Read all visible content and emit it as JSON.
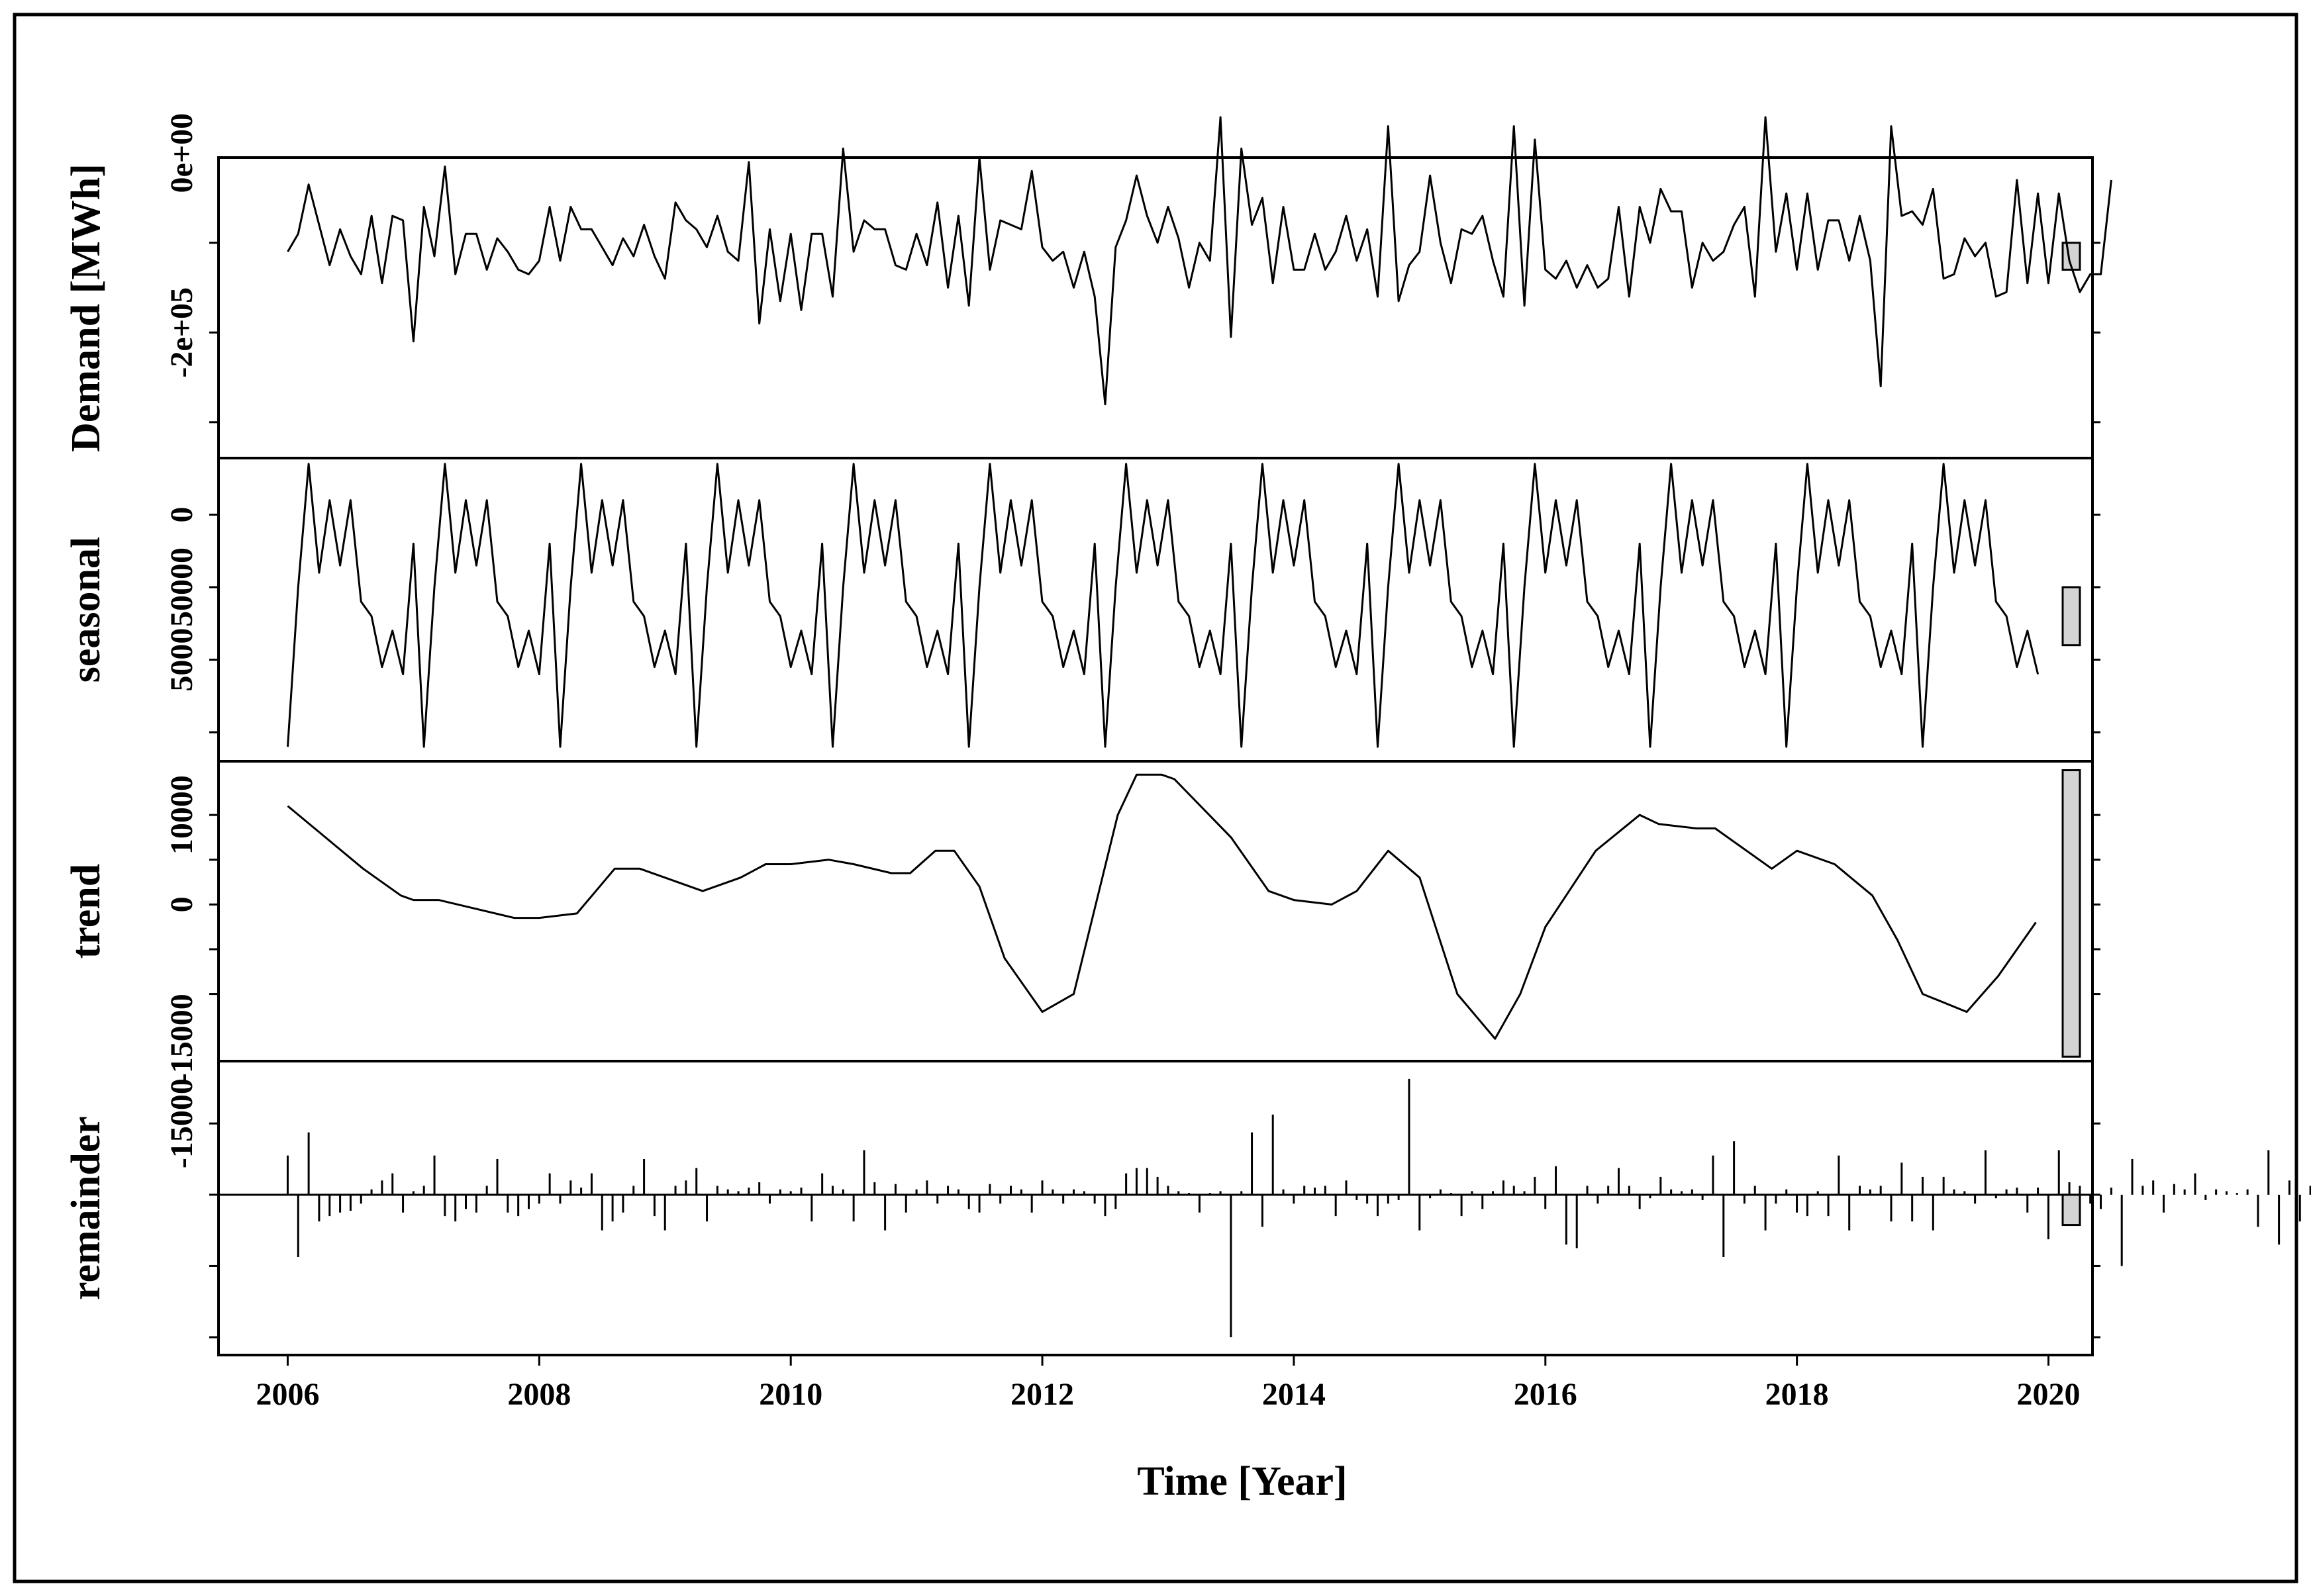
{
  "chart_data": {
    "type": "line",
    "title": "",
    "xlabel": "Time [Year]",
    "xlim": [
      2005.45,
      2020.35
    ],
    "x_ticks": [
      2006,
      2008,
      2010,
      2012,
      2014,
      2016,
      2018,
      2020
    ],
    "x_tick_labels": [
      "2006",
      "2008",
      "2010",
      "2012",
      "2014",
      "2016",
      "2018",
      "2020"
    ],
    "grid": false,
    "panels": [
      {
        "name": "data",
        "ylabel": "Demand [MWh]",
        "ylim": [
          -240000,
          95000
        ],
        "y_tick_values": [
          -200000,
          -100000,
          0,
          100000
        ],
        "y_tick_labels": [
          "-2e+05",
          "0e+00"
        ],
        "y_tick_label_values": [
          -100000,
          100000
        ],
        "scale_bar": [
          -30000,
          0
        ],
        "x_start": 2006.0,
        "x_step": 0.08333,
        "values": [
          -10000,
          10000,
          65000,
          20000,
          -25000,
          15000,
          -15000,
          -35000,
          30000,
          -45000,
          30000,
          25000,
          -110000,
          40000,
          -15000,
          85000,
          -35000,
          10000,
          10000,
          -30000,
          5000,
          -10000,
          -30000,
          -35000,
          -20000,
          40000,
          -20000,
          40000,
          15000,
          15000,
          -5000,
          -25000,
          5000,
          -15000,
          20000,
          -15000,
          -40000,
          45000,
          25000,
          15000,
          -5000,
          30000,
          -10000,
          -20000,
          90000,
          -90000,
          15000,
          -65000,
          10000,
          -75000,
          10000,
          10000,
          -60000,
          105000,
          -10000,
          25000,
          15000,
          15000,
          -25000,
          -30000,
          10000,
          -25000,
          45000,
          -50000,
          30000,
          -70000,
          95000,
          -30000,
          25000,
          20000,
          15000,
          80000,
          -5000,
          -20000,
          -10000,
          -50000,
          -10000,
          -60000,
          -180000,
          -5000,
          25000,
          75000,
          30000,
          0,
          40000,
          5000,
          -50000,
          0,
          -20000,
          140000,
          -105000,
          105000,
          20000,
          50000,
          -45000,
          40000,
          -30000,
          -30000,
          10000,
          -30000,
          -10000,
          30000,
          -20000,
          15000,
          -60000,
          130000,
          -65000,
          -25000,
          -10000,
          75000,
          0,
          -45000,
          15000,
          10000,
          30000,
          -20000,
          -60000,
          130000,
          -70000,
          115000,
          -30000,
          -40000,
          -20000,
          -50000,
          -25000,
          -50000,
          -40000,
          40000,
          -60000,
          40000,
          0,
          60000,
          35000,
          35000,
          -50000,
          0,
          -20000,
          -10000,
          20000,
          40000,
          -60000,
          140000,
          -10000,
          55000,
          -30000,
          55000,
          -30000,
          25000,
          25000,
          -20000,
          30000,
          -20000,
          -160000,
          130000,
          30000,
          35000,
          20000,
          60000,
          -40000,
          -35000,
          5000,
          -15000,
          0,
          -60000,
          -55000,
          70000,
          -45000,
          55000,
          -45000,
          55000,
          -20000,
          -55000,
          -35000,
          -35000,
          70000
        ]
      },
      {
        "name": "seasonal",
        "ylabel": "seasonal",
        "ylim": [
          -120000,
          89000
        ],
        "y_tick_values": [
          -100000,
          -50000,
          0,
          50000
        ],
        "y_tick_labels": [
          "0",
          "50000",
          "5000"
        ],
        "y_tick_label_values": [
          50000,
          0,
          -50000
        ],
        "scale_bar": [
          -40000,
          0
        ],
        "x_start": 2006.0,
        "x_step": 0.08333,
        "repeat_pattern": true,
        "values": [
          -110000,
          0,
          85000,
          10000,
          60000,
          15000,
          60000,
          -10000,
          -20000,
          -55000,
          -30000,
          -60000,
          30000
        ]
      },
      {
        "name": "trend",
        "ylabel": "trend",
        "ylim": [
          -17500,
          16000
        ],
        "y_tick_values": [
          -10000,
          -5000,
          0,
          5000,
          10000
        ],
        "y_tick_labels": [
          "-15000",
          "0",
          "10000"
        ],
        "y_tick_label_values": [
          -15000,
          0,
          10000
        ],
        "scale_bar": [
          -17000,
          15000
        ],
        "x": [
          2006.0,
          2006.3,
          2006.6,
          2006.9,
          2007.0,
          2007.2,
          2007.5,
          2007.8,
          2008.0,
          2008.3,
          2008.6,
          2008.8,
          2009.0,
          2009.3,
          2009.6,
          2009.8,
          2010.0,
          2010.3,
          2010.5,
          2010.8,
          2010.95,
          2011.15,
          2011.3,
          2011.5,
          2011.7,
          2012.0,
          2012.25,
          2012.6,
          2012.75,
          2012.95,
          2013.05,
          2013.5,
          2013.8,
          2014.0,
          2014.3,
          2014.5,
          2014.75,
          2015.0,
          2015.3,
          2015.6,
          2015.8,
          2016.0,
          2016.4,
          2016.75,
          2016.9,
          2017.2,
          2017.35,
          2017.8,
          2018.0,
          2018.3,
          2018.6,
          2018.8,
          2019.0,
          2019.35,
          2019.6,
          2019.9
        ],
        "values": [
          11000,
          7500,
          4000,
          1000,
          500,
          500,
          -500,
          -1500,
          -1500,
          -1000,
          4000,
          4000,
          3000,
          1500,
          3000,
          4500,
          4500,
          5000,
          4500,
          3500,
          3500,
          6000,
          6000,
          2000,
          -6000,
          -12000,
          -10000,
          10000,
          14500,
          14500,
          14000,
          7500,
          1500,
          500,
          0,
          1500,
          6000,
          3000,
          -10000,
          -15000,
          -10000,
          -2500,
          6000,
          10000,
          9000,
          8500,
          8500,
          4000,
          6000,
          4500,
          1000,
          -4000,
          -10000,
          -12000,
          -8000,
          -2000
        ]
      },
      {
        "name": "remainder",
        "ylabel": "remainder",
        "ylim": [
          -90000,
          75000
        ],
        "y_tick_values": [
          -80000,
          -40000,
          0,
          40000
        ],
        "y_tick_labels": [
          "-15000"
        ],
        "y_tick_label_values": [
          40000
        ],
        "scale_bar": [
          -17000,
          0
        ],
        "x_start": 2006.0,
        "x_step": 0.08333,
        "values": [
          22000,
          -35000,
          35000,
          -15000,
          -12000,
          -10000,
          -9000,
          -5000,
          3000,
          8000,
          12000,
          -10000,
          2000,
          5000,
          22000,
          -12000,
          -15000,
          -8000,
          -10000,
          5000,
          20000,
          -10000,
          -12000,
          -8000,
          -5000,
          12000,
          -5000,
          8000,
          4000,
          12000,
          -20000,
          -15000,
          -10000,
          5000,
          20000,
          -12000,
          -20000,
          5000,
          8000,
          15000,
          -15000,
          5000,
          3000,
          2000,
          4000,
          7000,
          -5000,
          3000,
          2000,
          4000,
          -15000,
          12000,
          5000,
          3000,
          -15000,
          25000,
          7000,
          -20000,
          6000,
          -10000,
          3000,
          8000,
          -5000,
          5000,
          3000,
          -8000,
          -10000,
          6000,
          -5000,
          5000,
          3000,
          -10000,
          8000,
          3000,
          -5000,
          3000,
          2000,
          -5000,
          -12000,
          -8000,
          12000,
          15000,
          15000,
          10000,
          5000,
          2000,
          1000,
          -10000,
          1000,
          2000,
          -80000,
          2000,
          35000,
          -18000,
          45000,
          3000,
          -5000,
          5000,
          4000,
          5000,
          -12000,
          8000,
          -3000,
          -5000,
          -12000,
          -5000,
          -3000,
          65000,
          -20000,
          -2000,
          3000,
          1000,
          -12000,
          2000,
          -8000,
          2000,
          8000,
          5000,
          2000,
          10000,
          -8000,
          16000,
          -28000,
          -30000,
          5000,
          -5000,
          5000,
          15000,
          5000,
          -8000,
          -2000,
          10000,
          3000,
          2000,
          3000,
          -3000,
          22000,
          -35000,
          30000,
          -5000,
          5000,
          -20000,
          -5000,
          3000,
          -10000,
          -12000,
          2000,
          -12000,
          22000,
          -20000,
          5000,
          3000,
          5000,
          -15000,
          18000,
          -15000,
          10000,
          -20000,
          10000,
          3000,
          2000,
          -5000,
          25000,
          -2000,
          3000,
          4000,
          -10000,
          4000,
          -25000,
          25000,
          7000,
          5000,
          -5000,
          -8000,
          4000,
          -40000,
          20000,
          5000,
          8000,
          -10000,
          6000,
          3000,
          12000,
          -3000,
          3000,
          2000,
          1000,
          3000,
          -18000,
          25000,
          -28000,
          8000,
          -15000,
          5000,
          3000,
          -18000,
          20000
        ]
      }
    ]
  }
}
